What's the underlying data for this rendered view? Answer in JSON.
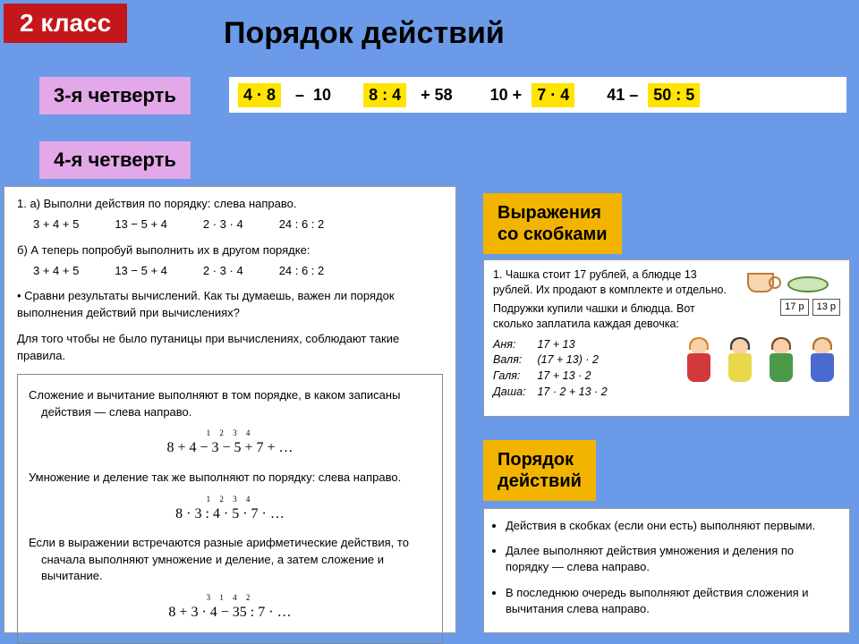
{
  "colors": {
    "bg": "#6b9be8",
    "red": "#c4171c",
    "violet": "#e3a8e8",
    "yellow": "#ffe400",
    "orange": "#f2b400"
  },
  "grade_badge": "2 класс",
  "title": "Порядок действий",
  "quarter3": "3-я четверть",
  "quarter4": "4-я четверть",
  "exprs": {
    "e1_hl": "4 · 8",
    "e1_tail": "  –  10",
    "e2_hl": "8 : 4",
    "e2_tail": "  + 58",
    "e3_head": "10 + ",
    "e3_hl": "7 · 4",
    "e4_head": "41 – ",
    "e4_hl": "50 : 5"
  },
  "left": {
    "line1": "1. а) Выполни действия по порядку: слева направо.",
    "rowA": [
      "3 + 4 + 5",
      "13 − 5 + 4",
      "2 · 3 · 4",
      "24 : 6 : 2"
    ],
    "line2": "б) А теперь попробуй выполнить их в другом порядке:",
    "rowB": [
      "3 + 4 + 5",
      "13 − 5 + 4",
      "2 · 3 · 4",
      "24 : 6 : 2"
    ],
    "compare": "• Сравни результаты вычислений. Как ты думаешь, важен ли порядок выполнения действий при вычислениях?",
    "rule_intro": "Для того чтобы не было путаницы при вычислениях, соблюдают такие правила.",
    "box_p1": "Сложение и вычитание выполняют в том порядке, в каком записаны действия — слева направо.",
    "box_f1_top": "1  2  3  4",
    "box_f1": "8 + 4 − 3 − 5 + 7 + …",
    "box_p2": "Умножение и деление так же выполняют по порядку: слева направо.",
    "box_f2_top": "1  2  3  4",
    "box_f2": "8 · 3 : 4 · 5 · 7 · …",
    "box_p3": "Если в выражении встречаются разные арифметические действия, то сначала выполняют умножение и деление, а затем сложение и вычитание.",
    "box_f3_top": "3   1   4   2",
    "box_f3": "8 + 3 · 4 − 35 : 7 · …"
  },
  "right_label1": "Выражения\nсо скобками",
  "right_label2": "Порядок\nдействий",
  "cups": {
    "text1": "1. Чашка стоит 17 рублей, а блюдце 13 рублей. Их продают в комплекте и отдельно.",
    "text2": "Подружки купили чашки и блюдца. Вот сколько заплатила каждая девочка:",
    "price1": "17 р",
    "price2": "13 р",
    "girls": [
      {
        "name": "Аня:",
        "expr": "17 + 13",
        "hair": "#d48a2e",
        "dress": "#d13a3a"
      },
      {
        "name": "Валя:",
        "expr": "(17 + 13) · 2",
        "hair": "#3a3a3a",
        "dress": "#e8d84a"
      },
      {
        "name": "Галя:",
        "expr": "17 + 13 · 2",
        "hair": "#7a4a2a",
        "dress": "#4a9a4a"
      },
      {
        "name": "Даша:",
        "expr": "17 · 2 + 13 · 2",
        "hair": "#b0742a",
        "dress": "#4a6ad1"
      }
    ]
  },
  "order": [
    "Действия в скобках (если они есть) выполняют первыми.",
    "Далее выполняют действия умножения и деления по порядку — слева направо.",
    "В последнюю очередь выполняют действия сложения и вычитания слева направо."
  ]
}
